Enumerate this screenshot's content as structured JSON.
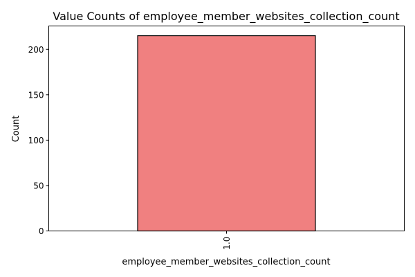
{
  "chart_data": {
    "type": "bar",
    "title": "Value Counts of employee_member_websites_collection_count",
    "xlabel": "employee_member_websites_collection_count",
    "ylabel": "Count",
    "categories": [
      "1.0"
    ],
    "values": [
      215
    ],
    "ylim": [
      0,
      225.75
    ],
    "yticks": [
      0,
      50,
      100,
      150,
      200
    ],
    "bar_color": "#f08080",
    "bar_edge_color": "#000000",
    "grid": false,
    "legend": "none"
  }
}
